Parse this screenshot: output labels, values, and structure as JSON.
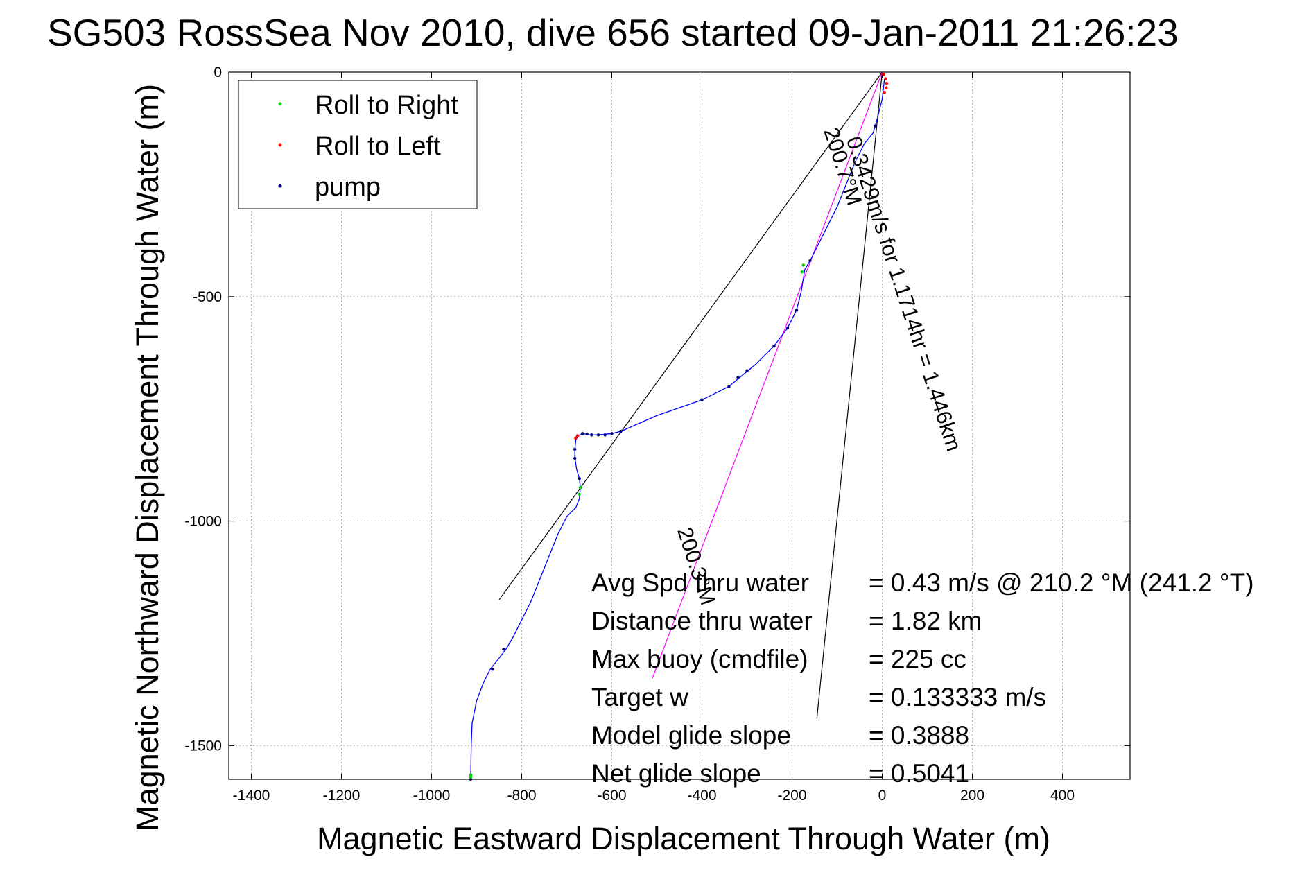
{
  "chart_data": {
    "type": "line",
    "title": "SG503 RossSea Nov 2010, dive 656 started 09-Jan-2011 21:26:23",
    "xlabel": "Magnetic Eastward Displacement Through Water (m)",
    "ylabel": "Magnetic Northward Displacement Through Water (m)",
    "xlim": [
      -1450,
      550
    ],
    "ylim": [
      -1575,
      0
    ],
    "xticks": [
      -1400,
      -1200,
      -1000,
      -800,
      -600,
      -400,
      -200,
      0,
      200,
      400
    ],
    "yticks": [
      0,
      -500,
      -1000,
      -1500
    ],
    "grid": true,
    "legend_position": "top-left",
    "legend": [
      {
        "label": "Roll to Right",
        "color": "#00cc00"
      },
      {
        "label": "Roll to Left",
        "color": "#ff0000"
      },
      {
        "label": "pump",
        "color": "#000080"
      }
    ],
    "series": [
      {
        "name": "track",
        "color": "#0000ff",
        "x": [
          5,
          0,
          -10,
          -20,
          -40,
          -60,
          -80,
          -100,
          -120,
          -140,
          -160,
          -172,
          -175,
          -180,
          -190,
          -210,
          -240,
          -280,
          -340,
          -400,
          -500,
          -580,
          -600,
          -630,
          -650,
          -665,
          -675,
          -680,
          -682,
          -682,
          -678,
          -672,
          -670,
          -672,
          -680,
          -700,
          -720,
          -740,
          -760,
          -780,
          -800,
          -820,
          -835,
          -850,
          -870,
          -885,
          -900,
          -910,
          -912,
          -913
        ],
        "y": [
          -15,
          -60,
          -100,
          -135,
          -160,
          -200,
          -250,
          -300,
          -340,
          -380,
          -420,
          -440,
          -460,
          -490,
          -530,
          -570,
          -610,
          -650,
          -700,
          -730,
          -765,
          -800,
          -805,
          -808,
          -808,
          -805,
          -810,
          -820,
          -840,
          -860,
          -885,
          -905,
          -925,
          -950,
          -970,
          -990,
          -1030,
          -1080,
          -1130,
          -1180,
          -1220,
          -1260,
          -1285,
          -1305,
          -1330,
          -1360,
          -1400,
          -1450,
          -1500,
          -1575
        ]
      }
    ],
    "roll_right_points": [
      [
        -175,
        -430
      ],
      [
        -178,
        -445
      ],
      [
        -670,
        -925
      ],
      [
        -672,
        -940
      ],
      [
        -913,
        -1565
      ],
      [
        -913,
        -1570
      ]
    ],
    "roll_left_points": [
      [
        3,
        -5
      ],
      [
        8,
        -15
      ],
      [
        10,
        -25
      ],
      [
        9,
        -35
      ],
      [
        5,
        -45
      ],
      [
        -680,
        -815
      ],
      [
        -676,
        -810
      ]
    ],
    "pump_points": [
      [
        -15,
        -120
      ],
      [
        -160,
        -420
      ],
      [
        -190,
        -530
      ],
      [
        -210,
        -570
      ],
      [
        -240,
        -610
      ],
      [
        -300,
        -665
      ],
      [
        -320,
        -680
      ],
      [
        -340,
        -700
      ],
      [
        -400,
        -730
      ],
      [
        -580,
        -800
      ],
      [
        -600,
        -805
      ],
      [
        -615,
        -808
      ],
      [
        -630,
        -808
      ],
      [
        -645,
        -808
      ],
      [
        -655,
        -806
      ],
      [
        -665,
        -805
      ],
      [
        -680,
        -815
      ],
      [
        -682,
        -840
      ],
      [
        -682,
        -860
      ],
      [
        -672,
        -905
      ],
      [
        -670,
        -925
      ],
      [
        -840,
        -1285
      ],
      [
        -865,
        -1330
      ],
      [
        -913,
        -1575
      ]
    ],
    "lines": [
      {
        "name": "current-line",
        "color": "#000000",
        "x": [
          0,
          -850
        ],
        "y": [
          0,
          -1175
        ]
      },
      {
        "name": "glider-heading-line",
        "color": "#000000",
        "x": [
          0,
          -145
        ],
        "y": [
          0,
          -1440
        ]
      },
      {
        "name": "net-track-line",
        "color": "#ff00ff",
        "x": [
          0,
          -510
        ],
        "y": [
          0,
          -1350
        ]
      }
    ],
    "annotations": [
      {
        "text": "0.3429m/s for 1.1714hr = 1.446km",
        "x": -80,
        "y": -150,
        "angle": 72
      },
      {
        "text": "200.7°M",
        "x": -130,
        "y": -130,
        "angle": 72
      },
      {
        "text": "200.3°M",
        "x": -455,
        "y": -1020,
        "angle": 72
      }
    ],
    "stats": [
      {
        "label": "Avg Spd thru water",
        "value": "=  0.43 m/s @ 210.2 °M (241.2 °T)"
      },
      {
        "label": "Distance thru water",
        "value": "=  1.82 km"
      },
      {
        "label": "Max buoy (cmdfile)",
        "value": "= 225 cc"
      },
      {
        "label": "Target w",
        "value": "= 0.133333 m/s"
      },
      {
        "label": "Model glide slope",
        "value": "= 0.3888"
      },
      {
        "label": "Net glide slope",
        "value": "= 0.5041"
      }
    ]
  }
}
